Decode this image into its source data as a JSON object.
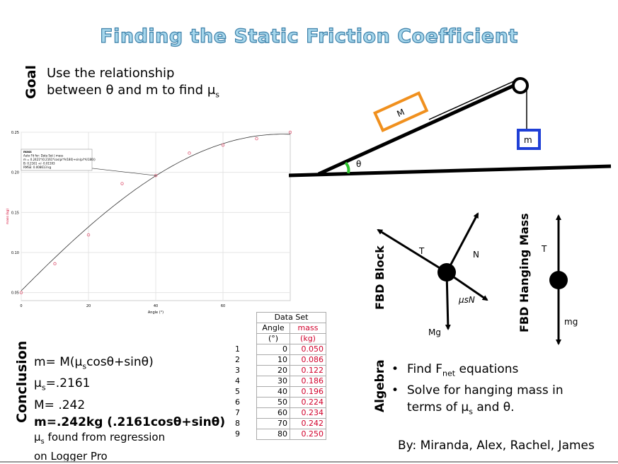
{
  "title": "Finding the Static Friction Coefficient",
  "goal": {
    "label": "Goal",
    "line1": "Use the relationship",
    "line2_pre": "between θ and m to find μ",
    "line2_sub": "s"
  },
  "chart_data": {
    "type": "scatter",
    "title": "",
    "xlabel": "Angle (°)",
    "ylabel": "mass (kg)",
    "xlim": [
      0,
      80
    ],
    "ylim": [
      0.04,
      0.25
    ],
    "xticks": [
      "0",
      "20",
      "40",
      "60"
    ],
    "yticks": [
      "0.05",
      "0.10",
      "0.15",
      "0.20",
      "0.25"
    ],
    "x": [
      0,
      10,
      20,
      30,
      40,
      50,
      60,
      70,
      80
    ],
    "y": [
      0.05,
      0.086,
      0.122,
      0.186,
      0.196,
      0.224,
      0.234,
      0.242,
      0.25
    ],
    "fit": {
      "M": 0.2421,
      "mu": 0.2161
    },
    "fit_box": {
      "header": "mass",
      "line1": "Auto Fit for: Data Set | mass",
      "line2": "m = 0.2421*(0.2161*cos(pi*A/180)+sin(pi*A/180))",
      "line3": "B: 0.2161 +/- 0.01593",
      "line4": "RMSE: 0.008613 kg"
    },
    "grid": true
  },
  "table": {
    "title": "Data Set",
    "col1": "Angle",
    "col1_unit": "(°)",
    "col2": "mass",
    "col2_unit": "(kg)",
    "rows": [
      [
        "1",
        "0",
        "0.050"
      ],
      [
        "2",
        "10",
        "0.086"
      ],
      [
        "3",
        "20",
        "0.122"
      ],
      [
        "4",
        "30",
        "0.186"
      ],
      [
        "5",
        "40",
        "0.196"
      ],
      [
        "6",
        "50",
        "0.224"
      ],
      [
        "7",
        "60",
        "0.234"
      ],
      [
        "8",
        "70",
        "0.242"
      ],
      [
        "9",
        "80",
        "0.250"
      ]
    ]
  },
  "diagram": {
    "block": "M",
    "hanging": "m",
    "angle": "θ"
  },
  "fbd_block": {
    "label": "FBD Block",
    "T": "T",
    "N": "N",
    "friction": "μsN",
    "weight": "Mg"
  },
  "fbd_hanging": {
    "label": "FBD Hanging Mass",
    "T": "T",
    "weight": "mg"
  },
  "conclusion": {
    "label": "Conclusion",
    "eq1_pre": "m= M(μ",
    "eq1_sub": "s",
    "eq1_post": "cosθ+sinθ)",
    "eq2_pre": "μ",
    "eq2_sub": "s",
    "eq2_post": "=.2161",
    "eq3": "M= .242",
    "eq4": "m=.242kg (.2161cosθ+sinθ)"
  },
  "note": {
    "pre": "μ",
    "sub": "s",
    "post": " found from regression",
    "line2": "on Logger Pro"
  },
  "algebra": {
    "label": "Algebra",
    "item1_pre": "Find F",
    "item1_sub": "net",
    "item1_post": " equations",
    "item2": "Solve for hanging mass in",
    "item3_pre": "terms of μ",
    "item3_sub": "s",
    "item3_post": " and θ."
  },
  "authors": "By: Miranda, Alex, Rachel, James",
  "colors": {
    "block": "#f0901e",
    "hanging": "#1f3fd6",
    "angle_arc": "#2ec42e",
    "data_point": "#e0607a",
    "data_text": "#d1002b"
  }
}
